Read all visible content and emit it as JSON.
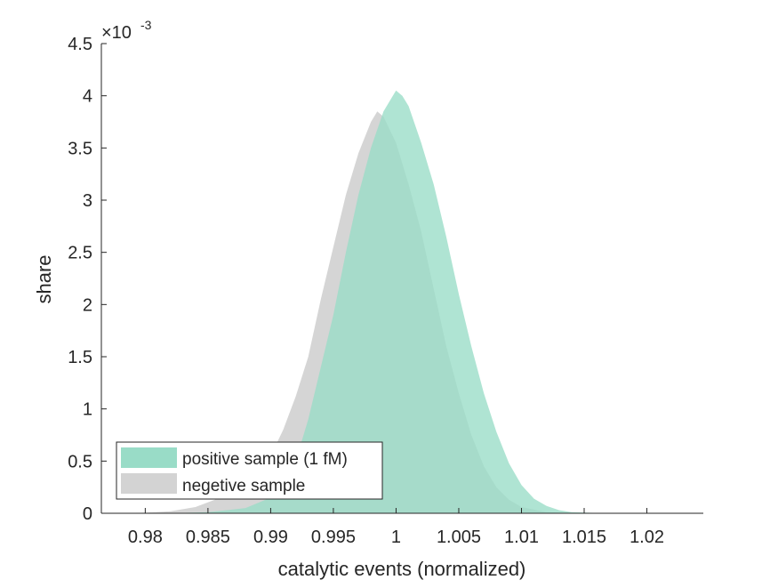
{
  "chart_data": {
    "type": "area",
    "title": "",
    "xlabel": "catalytic events (normalized)",
    "ylabel": "share",
    "y_exponent_label": "×10",
    "y_exponent": "-3",
    "xlim": [
      0.9765,
      1.0245
    ],
    "ylim": [
      0,
      4.5
    ],
    "y_unit_multiplier": 0.001,
    "x_ticks": [
      0.98,
      0.985,
      0.99,
      0.995,
      1,
      1.005,
      1.01,
      1.015,
      1.02
    ],
    "x_tick_labels": [
      "0.98",
      "0.985",
      "0.99",
      "0.995",
      "1",
      "1.005",
      "1.01",
      "1.015",
      "1.02"
    ],
    "y_ticks": [
      0,
      0.5,
      1,
      1.5,
      2,
      2.5,
      3,
      3.5,
      4,
      4.5
    ],
    "y_tick_labels": [
      "0",
      "0.5",
      "1",
      "1.5",
      "2",
      "2.5",
      "3",
      "3.5",
      "4",
      "4.5"
    ],
    "grid": false,
    "legend_position": "bottom-left",
    "series": [
      {
        "name": "negetive sample",
        "color": "#d3d3d3",
        "x": [
          0.976,
          0.98,
          0.982,
          0.984,
          0.986,
          0.988,
          0.99,
          0.991,
          0.992,
          0.993,
          0.994,
          0.995,
          0.996,
          0.997,
          0.998,
          0.9985,
          0.999,
          1.0,
          1.001,
          1.002,
          1.003,
          1.004,
          1.005,
          1.006,
          1.007,
          1.008,
          1.009,
          1.01,
          1.012,
          1.014,
          1.016
        ],
        "y": [
          0,
          0.005,
          0.02,
          0.06,
          0.15,
          0.3,
          0.55,
          0.8,
          1.12,
          1.5,
          2.05,
          2.55,
          3.05,
          3.45,
          3.75,
          3.85,
          3.8,
          3.55,
          3.15,
          2.7,
          2.15,
          1.6,
          1.15,
          0.75,
          0.45,
          0.25,
          0.13,
          0.06,
          0.01,
          0.002,
          0
        ]
      },
      {
        "name": "positive sample (1 fM)",
        "color": "#99dcc7",
        "x": [
          0.982,
          0.985,
          0.988,
          0.99,
          0.991,
          0.992,
          0.993,
          0.994,
          0.995,
          0.996,
          0.997,
          0.998,
          0.999,
          1.0,
          1.0005,
          1.001,
          1.002,
          1.003,
          1.004,
          1.005,
          1.006,
          1.007,
          1.008,
          1.009,
          1.01,
          1.011,
          1.012,
          1.013,
          1.014,
          1.016,
          1.02
        ],
        "y": [
          0,
          0.01,
          0.05,
          0.15,
          0.3,
          0.5,
          0.9,
          1.4,
          1.9,
          2.5,
          3.05,
          3.5,
          3.85,
          4.05,
          4.0,
          3.9,
          3.55,
          3.15,
          2.65,
          2.1,
          1.6,
          1.15,
          0.78,
          0.48,
          0.27,
          0.14,
          0.07,
          0.03,
          0.01,
          0.003,
          0
        ]
      }
    ]
  }
}
